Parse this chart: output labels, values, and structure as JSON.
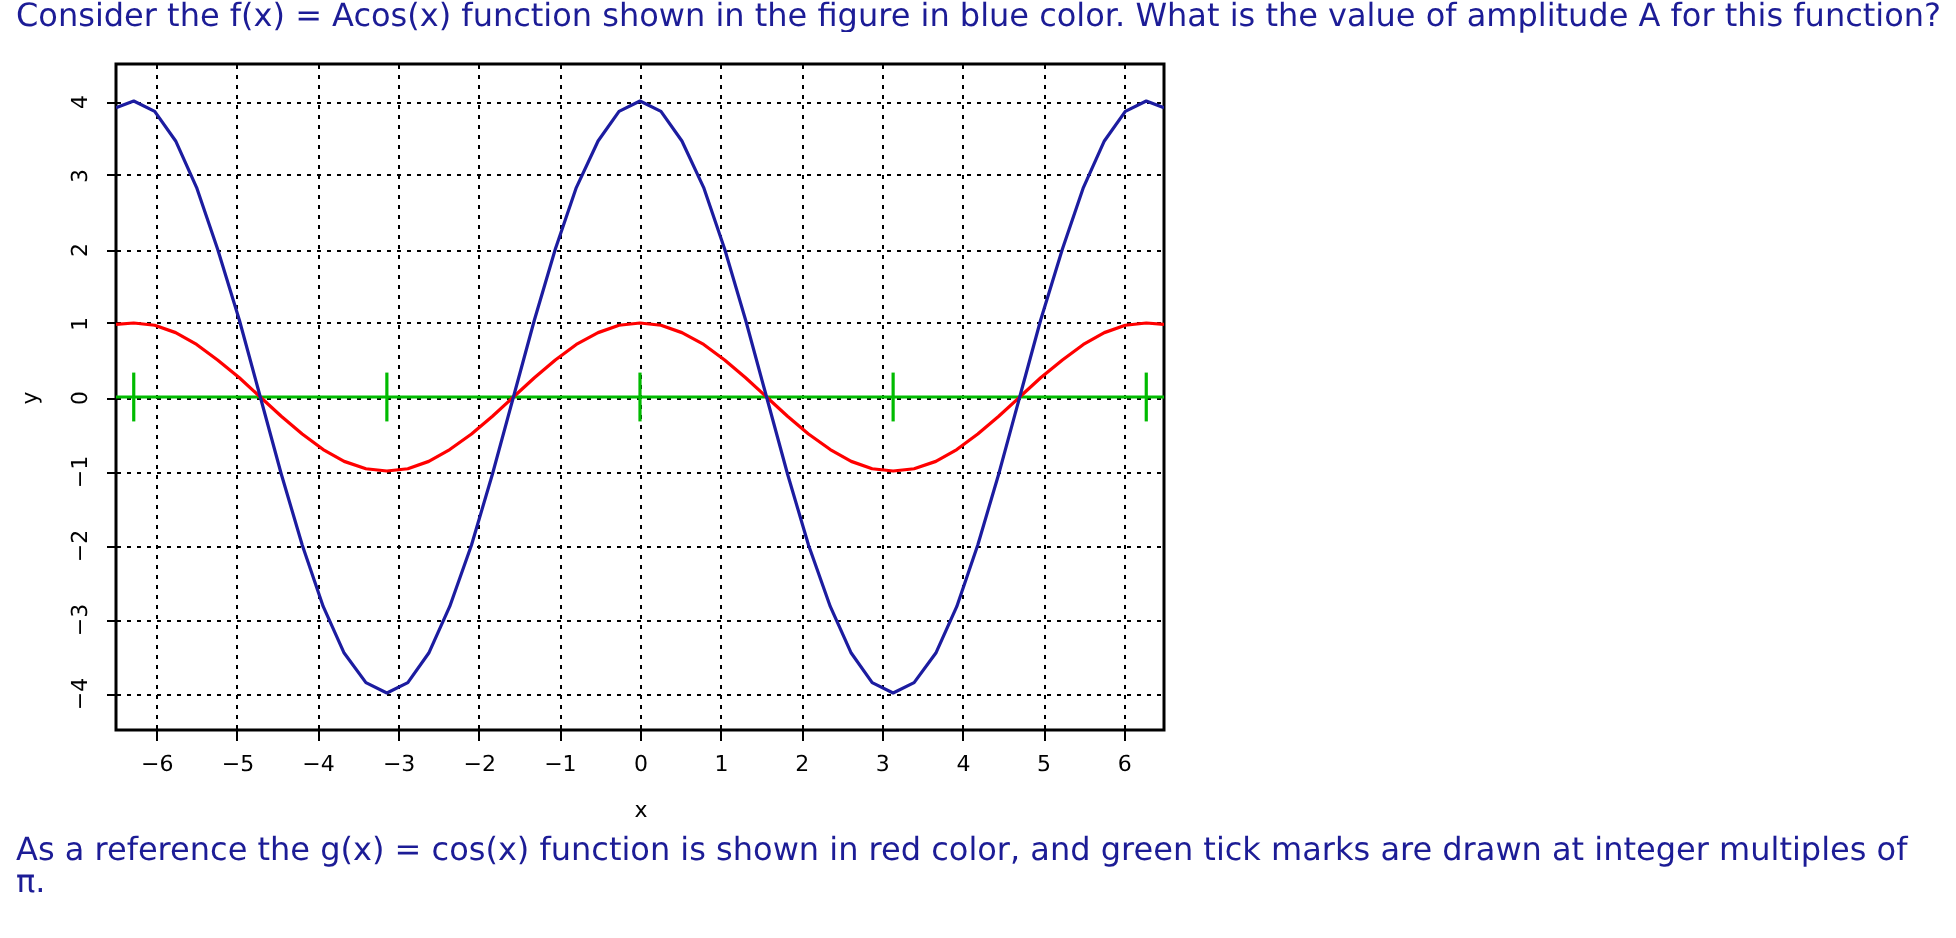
{
  "chart_data": {
    "type": "line",
    "title": "Consider the f(x) = Acos(x) function shown in the figure in blue color. What is the value of amplitude A for this function?",
    "xlabel": "x",
    "ylabel": "y",
    "annotations": [
      "As a reference the g(x) = cos(x) function is shown in red color, and green tick marks are drawn at integer multiples of π."
    ],
    "x": [
      -6.5,
      -6.28,
      -6.02,
      -5.76,
      -5.5,
      -5.24,
      -4.97,
      -4.71,
      -4.45,
      -4.19,
      -3.93,
      -3.67,
      -3.4,
      -3.14,
      -2.88,
      -2.62,
      -2.36,
      -2.09,
      -1.83,
      -1.57,
      -1.31,
      -1.05,
      -0.79,
      -0.52,
      -0.26,
      0,
      0.26,
      0.52,
      0.79,
      1.05,
      1.31,
      1.57,
      1.83,
      2.09,
      2.36,
      2.62,
      2.88,
      3.14,
      3.4,
      3.67,
      3.93,
      4.19,
      4.45,
      4.71,
      4.97,
      5.24,
      5.5,
      5.76,
      6.02,
      6.28,
      6.5
    ],
    "series": [
      {
        "color": "#00bb00",
        "x": [
          -6.5,
          6.5
        ],
        "values": [
          0,
          0
        ]
      },
      {
        "color": "#00bb00",
        "x": [
          -6.28,
          -6.28
        ],
        "values": [
          -0.33,
          0.33
        ]
      },
      {
        "color": "#00bb00",
        "x": [
          -3.14,
          -3.14
        ],
        "values": [
          -0.33,
          0.33
        ]
      },
      {
        "color": "#00bb00",
        "x": [
          0,
          0
        ],
        "values": [
          -0.33,
          0.33
        ]
      },
      {
        "color": "#00bb00",
        "x": [
          3.14,
          3.14
        ],
        "values": [
          -0.33,
          0.33
        ]
      },
      {
        "color": "#00bb00",
        "x": [
          6.28,
          6.28
        ],
        "values": [
          -0.33,
          0.33
        ]
      },
      {
        "color": "#ff0000",
        "values": [
          0.98,
          1,
          0.97,
          0.87,
          0.71,
          0.5,
          0.26,
          0,
          -0.26,
          -0.5,
          -0.71,
          -0.87,
          -0.97,
          -1,
          -0.97,
          -0.87,
          -0.71,
          -0.5,
          -0.26,
          0,
          0.26,
          0.5,
          0.71,
          0.87,
          0.97,
          1,
          0.97,
          0.87,
          0.71,
          0.5,
          0.26,
          0,
          -0.26,
          -0.5,
          -0.71,
          -0.87,
          -0.97,
          -1,
          -0.97,
          -0.87,
          -0.71,
          -0.5,
          -0.26,
          0,
          0.26,
          0.5,
          0.71,
          0.87,
          0.97,
          1,
          0.98
        ]
      },
      {
        "color": "#1c1ca0",
        "values": [
          3.91,
          4,
          3.86,
          3.46,
          2.83,
          2,
          1.04,
          0,
          -1.04,
          -2,
          -2.83,
          -3.46,
          -3.86,
          -4,
          -3.86,
          -3.46,
          -2.83,
          -2,
          -1.04,
          0,
          1.04,
          2,
          2.83,
          3.46,
          3.86,
          4,
          3.86,
          3.46,
          2.83,
          2,
          1.04,
          0,
          -1.04,
          -2,
          -2.83,
          -3.46,
          -3.86,
          -4,
          -3.86,
          -3.46,
          -2.83,
          -2,
          -1.04,
          0,
          1.04,
          2,
          2.83,
          3.46,
          3.86,
          4,
          3.91
        ]
      }
    ],
    "xlim": [
      -6.5,
      6.5
    ],
    "ylim": [
      -4.5,
      4.5
    ],
    "xticks": [
      -6,
      -5,
      -4,
      -3,
      -2,
      -1,
      0,
      1,
      2,
      3,
      4,
      5,
      6
    ],
    "yticks": [
      -4,
      -3,
      -2,
      -1,
      0,
      1,
      2,
      3,
      4
    ],
    "grid": true
  }
}
